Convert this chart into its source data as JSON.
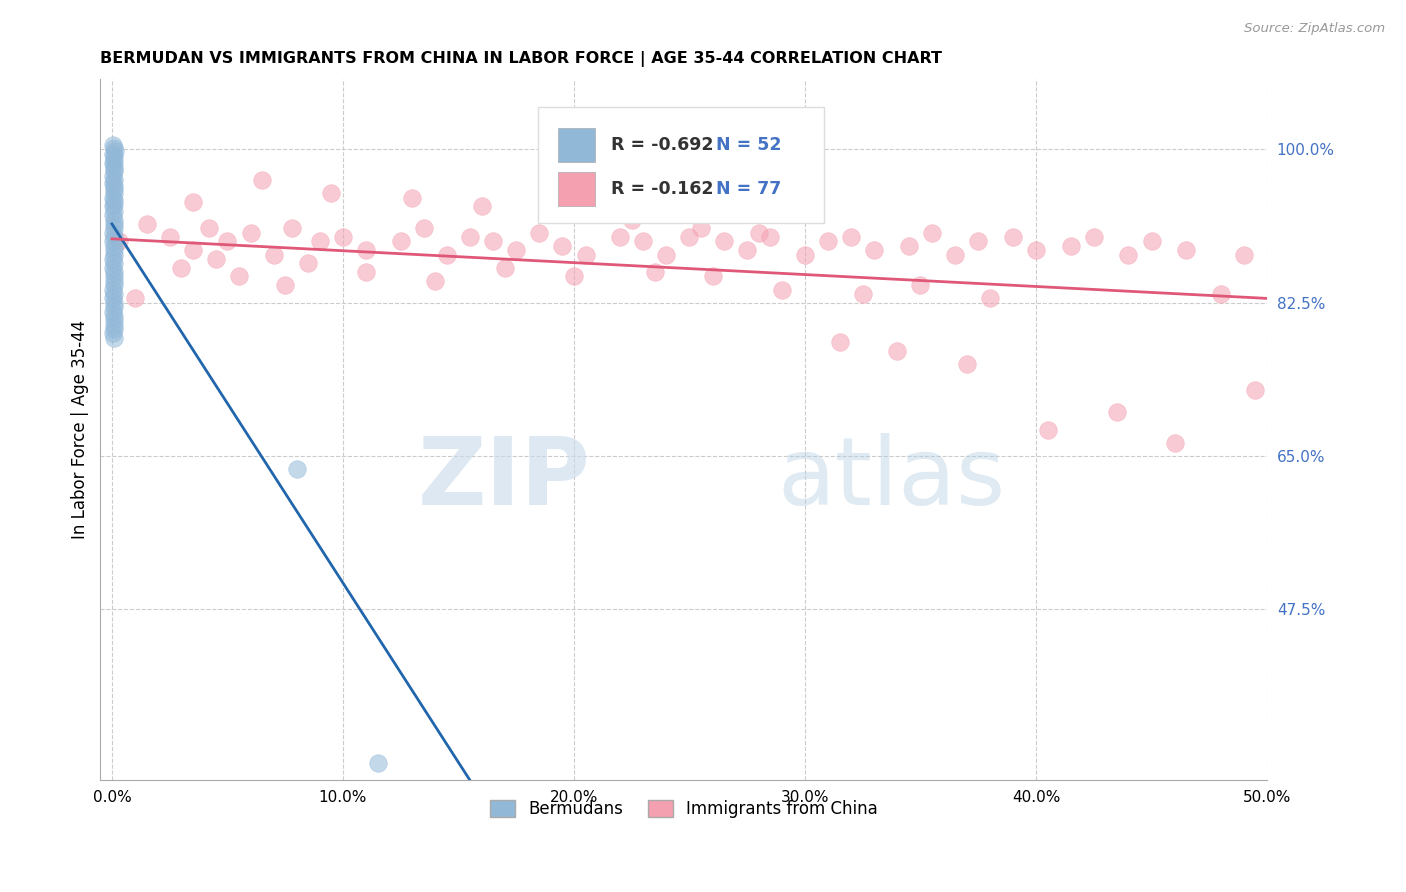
{
  "title": "BERMUDAN VS IMMIGRANTS FROM CHINA IN LABOR FORCE | AGE 35-44 CORRELATION CHART",
  "source": "Source: ZipAtlas.com",
  "ylabel": "In Labor Force | Age 35-44",
  "x_tick_labels": [
    "0.0%",
    "10.0%",
    "20.0%",
    "30.0%",
    "40.0%",
    "50.0%"
  ],
  "x_tick_values": [
    0,
    10,
    20,
    30,
    40,
    50
  ],
  "y_tick_labels_right": [
    "47.5%",
    "65.0%",
    "82.5%",
    "100.0%"
  ],
  "y_tick_values": [
    47.5,
    65.0,
    82.5,
    100.0
  ],
  "xlim": [
    -0.5,
    50
  ],
  "ylim": [
    28,
    108
  ],
  "legend_r_blue": "R = -0.692",
  "legend_n_blue": "N = 52",
  "legend_r_pink": "R = -0.162",
  "legend_n_pink": "N = 77",
  "blue_color": "#92b8d8",
  "pink_color": "#f4a0b0",
  "blue_line_color": "#2166ac",
  "pink_line_color": "#e05878",
  "watermark_zip": "ZIP",
  "watermark_atlas": "atlas",
  "blue_scatter_x": [
    0.05,
    0.08,
    0.12,
    0.05,
    0.08,
    0.1,
    0.06,
    0.09,
    0.07,
    0.11,
    0.05,
    0.08,
    0.06,
    0.1,
    0.07,
    0.09,
    0.06,
    0.08,
    0.07,
    0.05,
    0.1,
    0.06,
    0.08,
    0.07,
    0.09,
    0.05,
    0.08,
    0.06,
    0.1,
    0.07,
    0.09,
    0.05,
    0.08,
    0.06,
    0.1,
    0.07,
    0.09,
    0.11,
    0.06,
    0.08,
    0.05,
    0.07,
    0.09,
    0.06,
    0.08,
    0.1,
    0.07,
    0.09,
    0.06,
    0.08,
    8.0,
    11.5
  ],
  "blue_scatter_y": [
    100.5,
    100.2,
    99.8,
    99.5,
    99.2,
    98.8,
    98.5,
    98.2,
    97.8,
    97.5,
    97.0,
    96.5,
    96.2,
    95.8,
    95.5,
    95.0,
    94.5,
    94.2,
    93.8,
    93.5,
    93.0,
    92.5,
    92.0,
    91.5,
    91.0,
    90.5,
    90.0,
    89.5,
    89.0,
    88.5,
    88.0,
    87.5,
    87.0,
    86.5,
    86.0,
    85.5,
    85.0,
    84.5,
    84.0,
    83.5,
    83.0,
    82.5,
    82.0,
    81.5,
    81.0,
    80.5,
    80.0,
    79.5,
    79.0,
    78.5,
    63.5,
    30.0
  ],
  "pink_scatter_x": [
    0.3,
    1.5,
    2.5,
    3.5,
    4.2,
    5.0,
    6.0,
    7.0,
    7.8,
    9.0,
    10.0,
    11.0,
    12.5,
    13.5,
    14.5,
    15.5,
    16.5,
    17.5,
    18.5,
    19.5,
    20.5,
    22.0,
    23.0,
    24.0,
    25.0,
    26.5,
    27.5,
    28.5,
    30.0,
    31.0,
    32.0,
    33.0,
    34.5,
    35.5,
    36.5,
    37.5,
    39.0,
    40.0,
    41.5,
    42.5,
    44.0,
    45.0,
    46.5,
    48.0,
    49.0,
    3.0,
    5.5,
    8.5,
    11.0,
    14.0,
    17.0,
    20.0,
    23.5,
    26.0,
    29.0,
    32.5,
    35.0,
    38.0,
    3.5,
    6.5,
    9.5,
    13.0,
    16.0,
    19.5,
    22.5,
    25.5,
    28.0,
    31.5,
    34.0,
    37.0,
    40.5,
    43.5,
    46.0,
    49.5,
    1.0,
    4.5,
    7.5
  ],
  "pink_scatter_y": [
    89.5,
    91.5,
    90.0,
    88.5,
    91.0,
    89.5,
    90.5,
    88.0,
    91.0,
    89.5,
    90.0,
    88.5,
    89.5,
    91.0,
    88.0,
    90.0,
    89.5,
    88.5,
    90.5,
    89.0,
    88.0,
    90.0,
    89.5,
    88.0,
    90.0,
    89.5,
    88.5,
    90.0,
    88.0,
    89.5,
    90.0,
    88.5,
    89.0,
    90.5,
    88.0,
    89.5,
    90.0,
    88.5,
    89.0,
    90.0,
    88.0,
    89.5,
    88.5,
    83.5,
    88.0,
    86.5,
    85.5,
    87.0,
    86.0,
    85.0,
    86.5,
    85.5,
    86.0,
    85.5,
    84.0,
    83.5,
    84.5,
    83.0,
    94.0,
    96.5,
    95.0,
    94.5,
    93.5,
    93.0,
    92.0,
    91.0,
    90.5,
    78.0,
    77.0,
    75.5,
    68.0,
    70.0,
    66.5,
    72.5,
    83.0,
    87.5,
    84.5
  ],
  "blue_line_x": [
    0,
    15.5
  ],
  "blue_line_y": [
    91.5,
    28.0
  ],
  "pink_line_x": [
    0,
    50
  ],
  "pink_line_y": [
    89.8,
    83.0
  ]
}
